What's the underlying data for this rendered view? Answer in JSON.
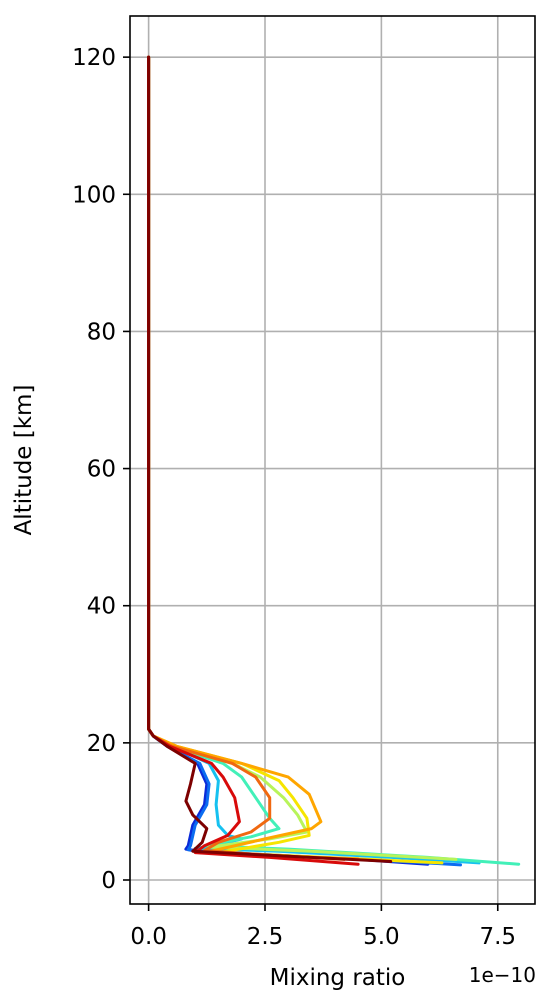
{
  "chart_data": {
    "type": "line",
    "xlabel": "Mixing ratio",
    "ylabel": "Altitude [km]",
    "x_offset_label": "1e−10",
    "x_scale_factor": 1e-10,
    "xlim": [
      -0.4,
      8.3
    ],
    "ylim": [
      -3.5,
      126
    ],
    "xticks": [
      0.0,
      2.5,
      5.0,
      7.5
    ],
    "xtick_labels": [
      "0.0",
      "2.5",
      "5.0",
      "7.5"
    ],
    "yticks": [
      0,
      20,
      40,
      60,
      80,
      100,
      120
    ],
    "ytick_labels": [
      "0",
      "20",
      "40",
      "60",
      "80",
      "100",
      "120"
    ],
    "grid": true,
    "legend": "none",
    "series": [
      {
        "color": "#0a2bd8",
        "points": [
          [
            0.0,
            120
          ],
          [
            0.0,
            100
          ],
          [
            0.0,
            60
          ],
          [
            0.0,
            22
          ],
          [
            0.1,
            21
          ],
          [
            0.4,
            19.5
          ],
          [
            1.05,
            17
          ],
          [
            1.25,
            14
          ],
          [
            1.2,
            11
          ],
          [
            0.95,
            8
          ],
          [
            0.85,
            5
          ],
          [
            0.8,
            4.5
          ],
          [
            1.1,
            4.2
          ],
          [
            2.5,
            3.7
          ],
          [
            4.5,
            3.0
          ],
          [
            6.0,
            2.3
          ]
        ]
      },
      {
        "color": "#0b6cf0",
        "points": [
          [
            0.0,
            120
          ],
          [
            0.0,
            100
          ],
          [
            0.0,
            60
          ],
          [
            0.0,
            22
          ],
          [
            0.1,
            21
          ],
          [
            0.4,
            19.5
          ],
          [
            1.1,
            17
          ],
          [
            1.3,
            14
          ],
          [
            1.25,
            11
          ],
          [
            1.0,
            8
          ],
          [
            0.9,
            5
          ],
          [
            0.85,
            4.4
          ],
          [
            1.2,
            4.0
          ],
          [
            3.0,
            3.5
          ],
          [
            5.2,
            2.8
          ],
          [
            6.7,
            2.2
          ]
        ]
      },
      {
        "color": "#16c1f0",
        "points": [
          [
            0.0,
            120
          ],
          [
            0.0,
            100
          ],
          [
            0.0,
            60
          ],
          [
            0.0,
            22
          ],
          [
            0.1,
            21
          ],
          [
            0.5,
            19.5
          ],
          [
            1.3,
            17
          ],
          [
            1.5,
            14.5
          ],
          [
            1.45,
            11
          ],
          [
            1.5,
            8
          ],
          [
            1.7,
            6.5
          ],
          [
            2.0,
            6.0
          ],
          [
            1.4,
            5.0
          ],
          [
            1.0,
            4.6
          ],
          [
            2.8,
            4.2
          ],
          [
            5.5,
            3.2
          ],
          [
            7.1,
            2.5
          ]
        ]
      },
      {
        "color": "#42f0b8",
        "points": [
          [
            0.0,
            120
          ],
          [
            0.0,
            100
          ],
          [
            0.0,
            60
          ],
          [
            0.0,
            22
          ],
          [
            0.1,
            21
          ],
          [
            0.5,
            19.5
          ],
          [
            1.6,
            17
          ],
          [
            2.0,
            15
          ],
          [
            2.3,
            12
          ],
          [
            2.6,
            9
          ],
          [
            2.8,
            7.5
          ],
          [
            2.2,
            6.3
          ],
          [
            1.2,
            5.0
          ],
          [
            3.0,
            4.5
          ],
          [
            6.0,
            3.3
          ],
          [
            7.95,
            2.3
          ]
        ]
      },
      {
        "color": "#b8f45a",
        "points": [
          [
            0.0,
            120
          ],
          [
            0.0,
            100
          ],
          [
            0.0,
            60
          ],
          [
            0.0,
            22
          ],
          [
            0.1,
            21
          ],
          [
            0.5,
            19.5
          ],
          [
            1.8,
            17
          ],
          [
            2.4,
            15
          ],
          [
            2.9,
            12
          ],
          [
            3.2,
            9.5
          ],
          [
            3.4,
            7.0
          ],
          [
            2.6,
            6.0
          ],
          [
            1.3,
            4.8
          ],
          [
            3.5,
            4.2
          ],
          [
            6.6,
            3.0
          ]
        ]
      },
      {
        "color": "#f6e500",
        "points": [
          [
            0.0,
            120
          ],
          [
            0.0,
            100
          ],
          [
            0.0,
            60
          ],
          [
            0.0,
            22
          ],
          [
            0.1,
            21
          ],
          [
            0.6,
            19.5
          ],
          [
            2.0,
            17
          ],
          [
            2.8,
            14.5
          ],
          [
            3.1,
            12
          ],
          [
            3.4,
            9
          ],
          [
            3.45,
            6.5
          ],
          [
            2.8,
            5.5
          ],
          [
            1.5,
            4.0
          ],
          [
            3.5,
            3.4
          ],
          [
            6.3,
            2.5
          ]
        ]
      },
      {
        "color": "#ffa600",
        "points": [
          [
            0.0,
            120
          ],
          [
            0.0,
            100
          ],
          [
            0.0,
            60
          ],
          [
            0.0,
            22
          ],
          [
            0.1,
            21
          ],
          [
            0.6,
            19.5
          ],
          [
            2.0,
            17
          ],
          [
            3.0,
            15
          ],
          [
            3.45,
            12.5
          ],
          [
            3.7,
            8.5
          ],
          [
            3.5,
            7.5
          ],
          [
            2.5,
            6.0
          ],
          [
            1.2,
            4.0
          ],
          [
            2.6,
            3.5
          ],
          [
            4.5,
            3.1
          ]
        ]
      },
      {
        "color": "#f06810",
        "points": [
          [
            0.0,
            120
          ],
          [
            0.0,
            100
          ],
          [
            0.0,
            60
          ],
          [
            0.0,
            22
          ],
          [
            0.1,
            21
          ],
          [
            0.5,
            19.5
          ],
          [
            1.8,
            17
          ],
          [
            2.3,
            15
          ],
          [
            2.6,
            12
          ],
          [
            2.6,
            9
          ],
          [
            2.2,
            7.0
          ],
          [
            1.5,
            5.5
          ],
          [
            1.2,
            4.3
          ],
          [
            2.6,
            3.6
          ],
          [
            4.2,
            3.0
          ]
        ]
      },
      {
        "color": "#d80a0a",
        "points": [
          [
            0.0,
            120
          ],
          [
            0.0,
            100
          ],
          [
            0.0,
            60
          ],
          [
            0.0,
            22
          ],
          [
            0.1,
            21
          ],
          [
            0.45,
            19.5
          ],
          [
            1.35,
            17
          ],
          [
            1.6,
            15
          ],
          [
            1.85,
            12
          ],
          [
            1.95,
            8.5
          ],
          [
            1.7,
            6.5
          ],
          [
            1.2,
            5.0
          ],
          [
            1.0,
            4.0
          ],
          [
            2.6,
            3.3
          ],
          [
            4.5,
            2.3
          ]
        ]
      },
      {
        "color": "#7d0000",
        "points": [
          [
            0.0,
            120
          ],
          [
            0.0,
            100
          ],
          [
            0.0,
            60
          ],
          [
            0.0,
            22
          ],
          [
            0.1,
            21
          ],
          [
            0.4,
            19.5
          ],
          [
            1.0,
            17
          ],
          [
            0.9,
            14
          ],
          [
            0.8,
            11.5
          ],
          [
            0.95,
            9.5
          ],
          [
            1.25,
            7.5
          ],
          [
            1.15,
            5.5
          ],
          [
            0.95,
            4.2
          ],
          [
            2.6,
            3.6
          ],
          [
            5.2,
            2.7
          ]
        ]
      }
    ]
  }
}
